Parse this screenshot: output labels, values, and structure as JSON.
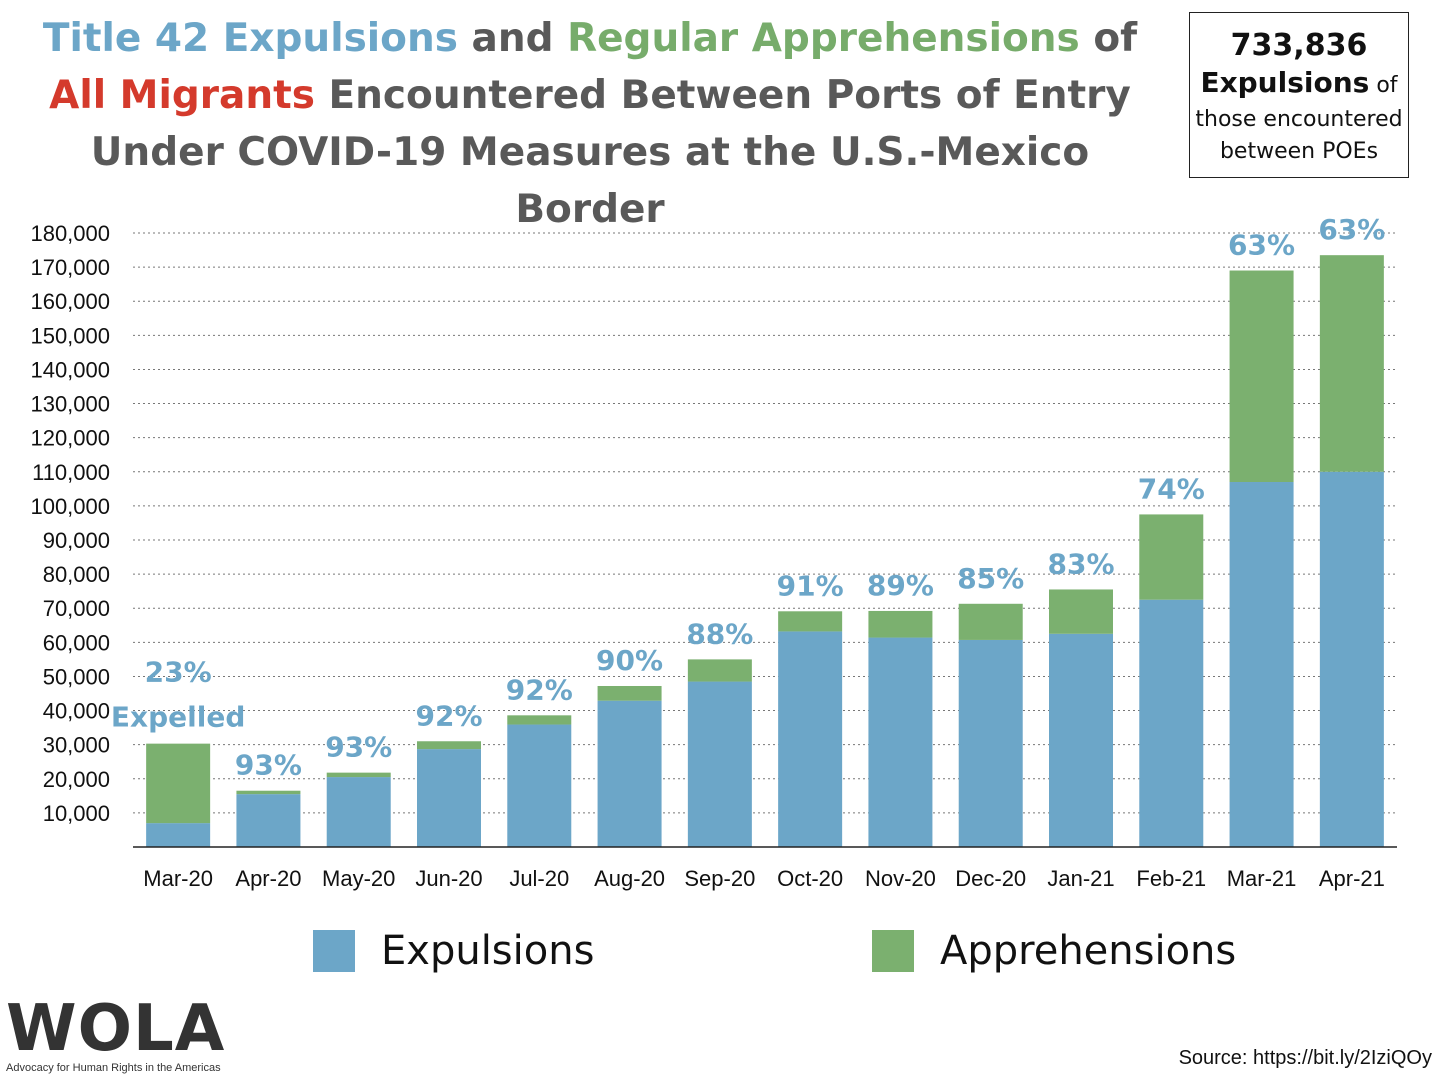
{
  "title": {
    "part1": "Title 42 Expulsions",
    "part2": " and ",
    "part3": "Regular Apprehensions",
    "part4": " of ",
    "part5": "All Migrants",
    "part6": " Encountered Between Ports of Entry Under COVID-19 Measures at the U.S.-Mexico Border"
  },
  "stat_box": {
    "number": "733,836",
    "word": "Expulsions",
    "of": "of",
    "rest1": "those encountered",
    "rest2": "between POEs"
  },
  "colors": {
    "expulsions": "#6ca6c8",
    "apprehensions": "#7bb06f",
    "pct_label": "#6ca6c8"
  },
  "legend": {
    "expulsions": "Expulsions",
    "apprehensions": "Apprehensions"
  },
  "first_bar_note": "Expelled",
  "logo": {
    "name": "WOLA",
    "tagline": "Advocacy for Human Rights in the Americas"
  },
  "source": "Source: https://bit.ly/2IziQOy",
  "chart_data": {
    "type": "bar",
    "stacked": true,
    "categories": [
      "Mar-20",
      "Apr-20",
      "May-20",
      "Jun-20",
      "Jul-20",
      "Aug-20",
      "Sep-20",
      "Oct-20",
      "Nov-20",
      "Dec-20",
      "Jan-21",
      "Feb-21",
      "Mar-21",
      "Apr-21"
    ],
    "series": [
      {
        "name": "Expulsions",
        "values": [
          7000,
          15500,
          20500,
          28700,
          35900,
          42900,
          48500,
          63200,
          61400,
          60700,
          62500,
          72500,
          107000,
          110000
        ]
      },
      {
        "name": "Apprehensions",
        "values": [
          23300,
          1000,
          1300,
          2300,
          2700,
          4300,
          6500,
          5900,
          7800,
          10600,
          13000,
          25000,
          62000,
          63500
        ]
      }
    ],
    "pct_labels": [
      "23%",
      "93%",
      "93%",
      "92%",
      "92%",
      "90%",
      "88%",
      "91%",
      "89%",
      "85%",
      "83%",
      "74%",
      "63%",
      "63%"
    ],
    "ylim": [
      0,
      180000
    ],
    "yticks": [
      "10,000",
      "20,000",
      "30,000",
      "40,000",
      "50,000",
      "60,000",
      "70,000",
      "80,000",
      "90,000",
      "100,000",
      "110,000",
      "120,000",
      "130,000",
      "140,000",
      "150,000",
      "160,000",
      "170,000",
      "180,000"
    ],
    "grid": true,
    "legend_position": "bottom"
  }
}
